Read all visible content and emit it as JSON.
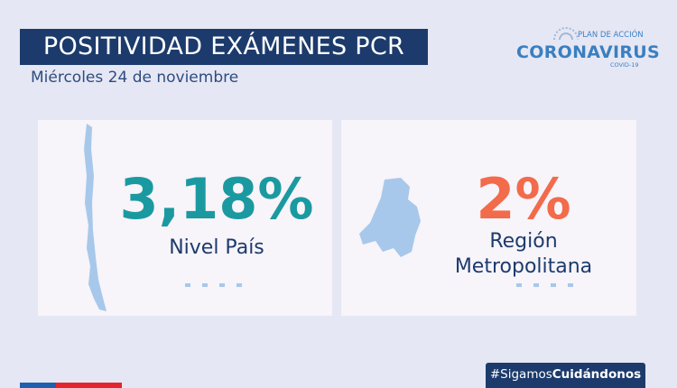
{
  "header": {
    "title": "POSITIVIDAD EXÁMENES PCR",
    "subtitle": "Miércoles 24 de noviembre"
  },
  "logo": {
    "top": "PLAN DE ACCIÓN",
    "main": "CORONAVIRUS",
    "sub": "COVID-19"
  },
  "cards": [
    {
      "value": "3,18%",
      "label_lines": [
        "Nivel País"
      ]
    },
    {
      "value": "2%",
      "label_lines": [
        "Región",
        "Metropolitana"
      ]
    }
  ],
  "footer": {
    "hashtag_prefix": "#Sigamos",
    "hashtag_bold": "Cuidándonos"
  }
}
